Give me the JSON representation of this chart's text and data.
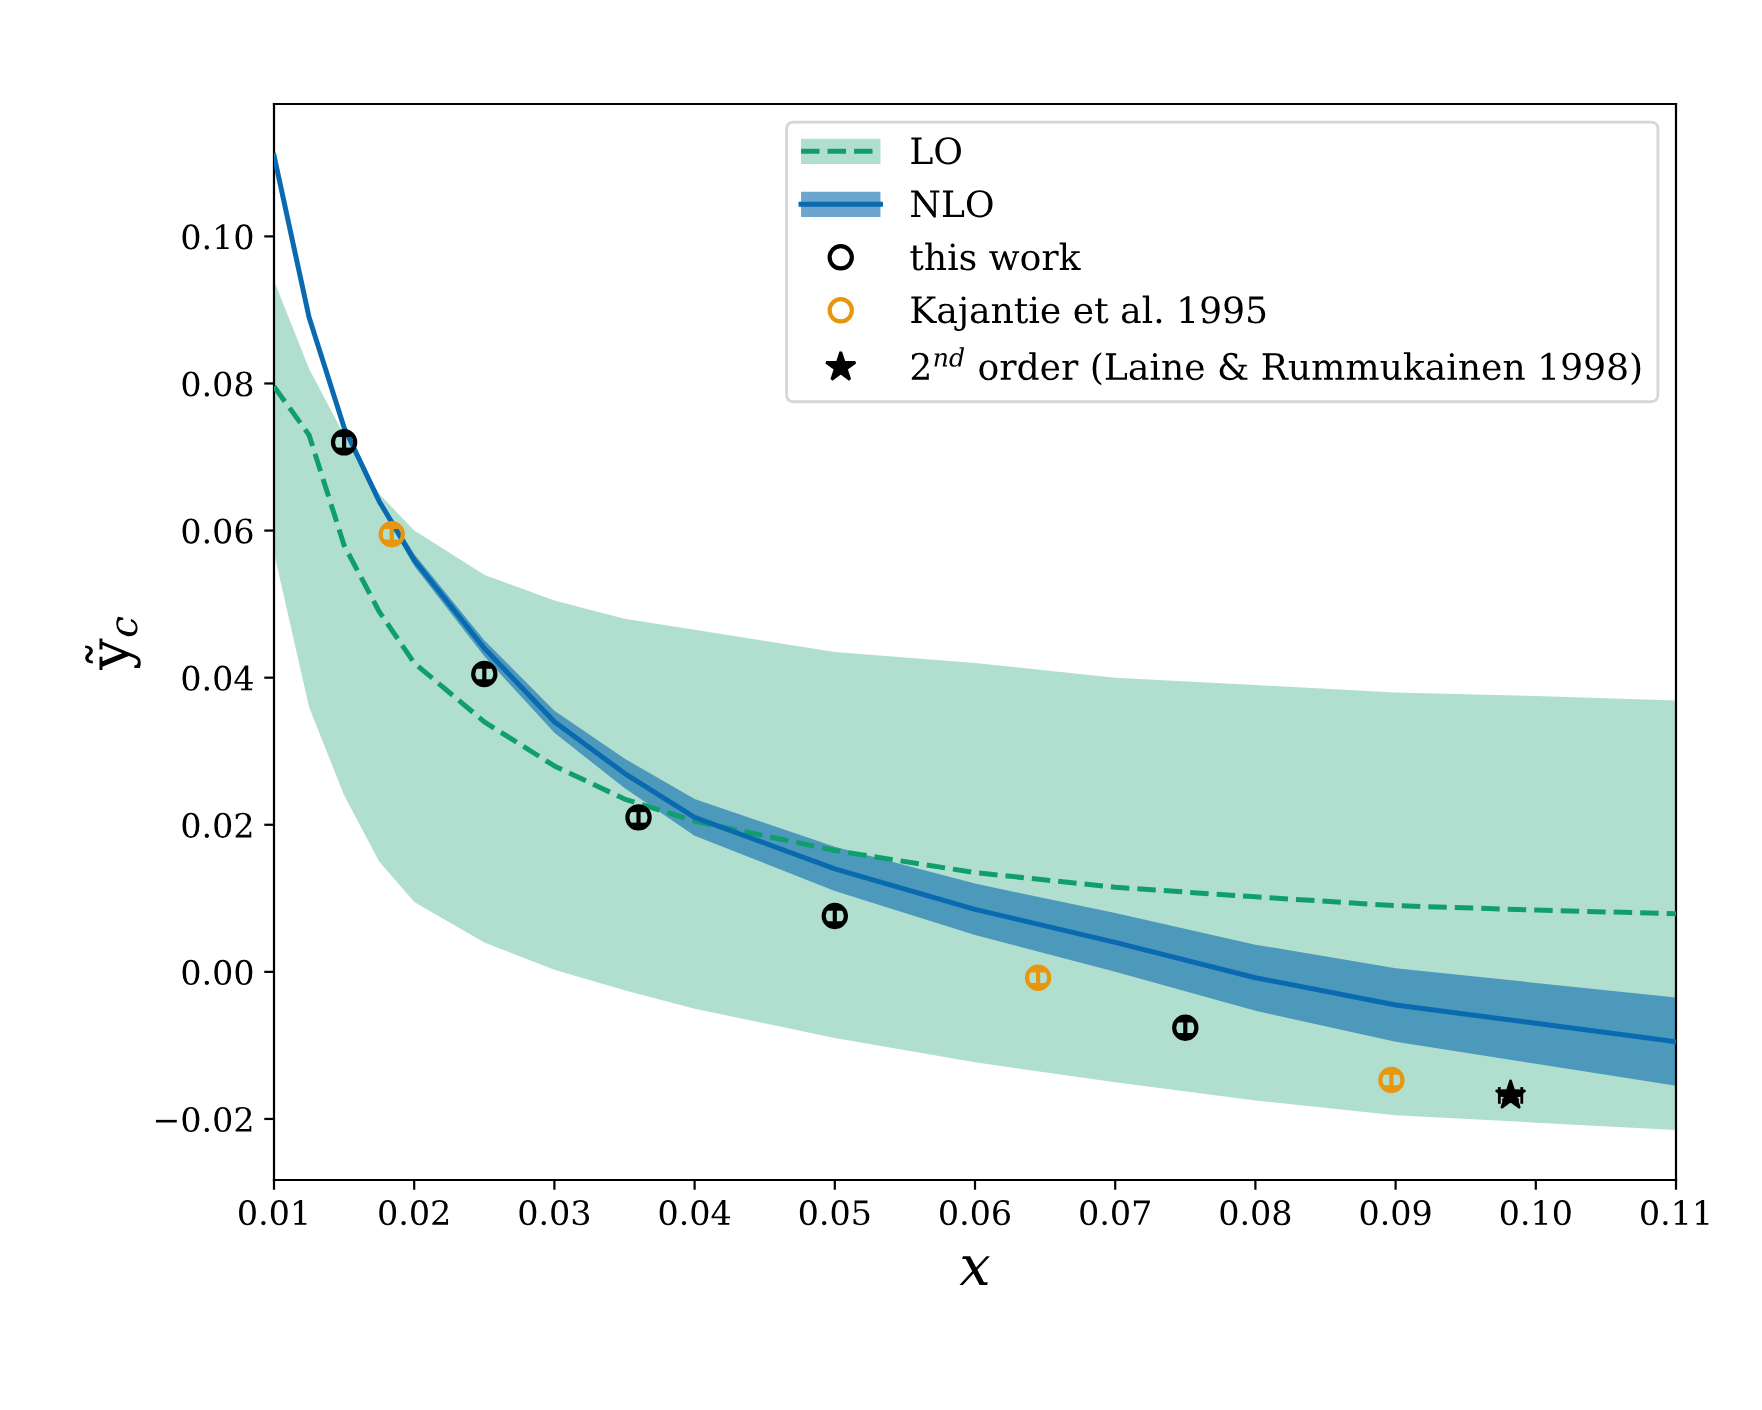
{
  "chart_data": {
    "type": "line",
    "xlabel": "x",
    "ylabel": "ỹ$_{c}$",
    "xlim": [
      0.01,
      0.11
    ],
    "ylim": [
      -0.0283,
      0.118
    ],
    "xticks": [
      {
        "value": 0.01,
        "label": "0.01"
      },
      {
        "value": 0.02,
        "label": "0.02"
      },
      {
        "value": 0.03,
        "label": "0.03"
      },
      {
        "value": 0.04,
        "label": "0.04"
      },
      {
        "value": 0.05,
        "label": "0.05"
      },
      {
        "value": 0.06,
        "label": "0.06"
      },
      {
        "value": 0.07,
        "label": "0.07"
      },
      {
        "value": 0.08,
        "label": "0.08"
      },
      {
        "value": 0.09,
        "label": "0.09"
      },
      {
        "value": 0.1,
        "label": "0.10"
      },
      {
        "value": 0.11,
        "label": "0.11"
      }
    ],
    "yticks": [
      {
        "value": -0.02,
        "label": "−0.02"
      },
      {
        "value": 0.0,
        "label": "0.00"
      },
      {
        "value": 0.02,
        "label": "0.02"
      },
      {
        "value": 0.04,
        "label": "0.04"
      },
      {
        "value": 0.06,
        "label": "0.06"
      },
      {
        "value": 0.08,
        "label": "0.08"
      },
      {
        "value": 0.1,
        "label": "0.10"
      }
    ],
    "grid": false,
    "legend": "top right",
    "series": [
      {
        "name": "LO",
        "line_style": "dashed",
        "color": "#119e6e",
        "x": [
          0.01,
          0.0125,
          0.015,
          0.0175,
          0.02,
          0.025,
          0.03,
          0.035,
          0.04,
          0.05,
          0.06,
          0.07,
          0.08,
          0.09,
          0.1,
          0.11
        ],
        "values": [
          0.0796,
          0.073,
          0.058,
          0.049,
          0.042,
          0.034,
          0.028,
          0.0235,
          0.0205,
          0.0165,
          0.0135,
          0.0115,
          0.0102,
          0.009,
          0.0084,
          0.0079
        ],
        "upper": [
          0.094,
          0.082,
          0.073,
          0.065,
          0.06,
          0.054,
          0.0505,
          0.048,
          0.0465,
          0.0435,
          0.042,
          0.04,
          0.039,
          0.038,
          0.0375,
          0.0369
        ],
        "lower": [
          0.057,
          0.036,
          0.024,
          0.015,
          0.0095,
          0.004,
          0.0003,
          -0.0025,
          -0.005,
          -0.009,
          -0.0123,
          -0.015,
          -0.0175,
          -0.0195,
          -0.0205,
          -0.0215
        ]
      },
      {
        "name": "NLO",
        "line_style": "solid",
        "color": "#0a6aaf",
        "x": [
          0.01,
          0.0125,
          0.015,
          0.0175,
          0.02,
          0.025,
          0.03,
          0.035,
          0.04,
          0.05,
          0.06,
          0.07,
          0.08,
          0.09,
          0.1,
          0.11
        ],
        "values": [
          0.111,
          0.089,
          0.074,
          0.064,
          0.056,
          0.044,
          0.034,
          0.027,
          0.021,
          0.014,
          0.0085,
          0.004,
          -0.0008,
          -0.0045,
          -0.007,
          -0.0095
        ],
        "upper": [
          0.1115,
          0.0895,
          0.0745,
          0.0645,
          0.0568,
          0.0451,
          0.0355,
          0.029,
          0.0235,
          0.017,
          0.012,
          0.008,
          0.0037,
          0.0005,
          -0.0015,
          -0.0035
        ],
        "lower": [
          0.1105,
          0.0885,
          0.0735,
          0.0635,
          0.0552,
          0.0429,
          0.0325,
          0.025,
          0.0185,
          0.011,
          0.005,
          0.0,
          -0.0053,
          -0.0095,
          -0.0125,
          -0.0155
        ]
      },
      {
        "name": "this work",
        "type": "scatter",
        "marker": "circle",
        "color": "#000000",
        "x": [
          0.015,
          0.025,
          0.036,
          0.05,
          0.075
        ],
        "values": [
          0.072,
          0.0405,
          0.021,
          0.0076,
          -0.0076
        ],
        "errors": [
          0.001,
          0.001,
          0.001,
          0.001,
          0.001
        ]
      },
      {
        "name": "Kajantie et al. 1995",
        "type": "scatter",
        "marker": "circle",
        "color": "#e8960e",
        "x": [
          0.0184,
          0.0645,
          0.0897
        ],
        "values": [
          0.0595,
          -0.0008,
          -0.0147
        ],
        "errors": [
          0.001,
          0.001,
          0.001
        ]
      },
      {
        "name": "2$^{nd}$ order (Laine & Rummukainen 1998)",
        "type": "scatter",
        "marker": "star",
        "color": "#000000",
        "x": [
          0.0982
        ],
        "values": [
          -0.0168
        ],
        "errors": [
          0.0006
        ],
        "xerrors": [
          0.0008
        ]
      }
    ]
  }
}
